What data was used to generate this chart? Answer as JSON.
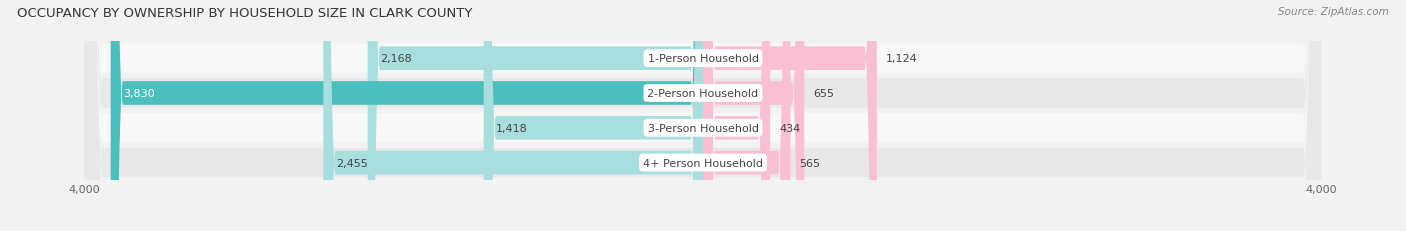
{
  "title": "OCCUPANCY BY OWNERSHIP BY HOUSEHOLD SIZE IN CLARK COUNTY",
  "source": "Source: ZipAtlas.com",
  "categories": [
    "1-Person Household",
    "2-Person Household",
    "3-Person Household",
    "4+ Person Household"
  ],
  "owner_values": [
    2168,
    3830,
    1418,
    2455
  ],
  "renter_values": [
    1124,
    655,
    434,
    565
  ],
  "owner_color": "#4BBFBE",
  "renter_color": "#F07FA8",
  "owner_color_light": "#A8DEDE",
  "renter_color_light": "#F9C0D4",
  "axis_max": 4000,
  "row_bg_colors": [
    "#f7f7f7",
    "#ebebeb",
    "#f7f7f7",
    "#ebebeb"
  ],
  "background_color": "#f2f2f2",
  "title_fontsize": 9.5,
  "source_fontsize": 7.5,
  "label_fontsize": 8,
  "value_fontsize": 8,
  "tick_fontsize": 8
}
